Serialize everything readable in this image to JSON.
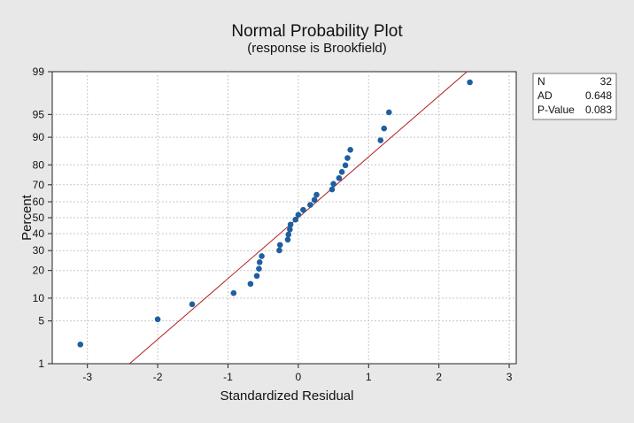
{
  "chart_data": {
    "type": "scatter",
    "title": "Normal Probability Plot",
    "subtitle": "(response is Brookfield)",
    "xlabel": "Standardized Residual",
    "ylabel": "Percent",
    "xlim": [
      -3.5,
      3.1
    ],
    "ylim_percent": [
      1,
      99
    ],
    "y_scale": "normal-probability",
    "grid": true,
    "x_ticks": [
      -3,
      -2,
      -1,
      0,
      1,
      2,
      3
    ],
    "y_ticks": [
      1,
      5,
      10,
      20,
      30,
      40,
      50,
      60,
      70,
      80,
      90,
      95,
      99
    ],
    "fit_line": {
      "x": [
        -2.4,
        2.4
      ],
      "percent": [
        1,
        99
      ]
    },
    "points": {
      "x": [
        -3.1,
        -2.0,
        -1.51,
        -0.92,
        -0.68,
        -0.59,
        -0.56,
        -0.55,
        -0.52,
        -0.27,
        -0.26,
        -0.15,
        -0.14,
        -0.12,
        -0.11,
        -0.04,
        0.0,
        0.07,
        0.17,
        0.23,
        0.26,
        0.48,
        0.5,
        0.58,
        0.62,
        0.67,
        0.7,
        0.74,
        1.17,
        1.22,
        1.29,
        2.44
      ],
      "percent": [
        2.17,
        5.28,
        8.39,
        11.49,
        14.6,
        17.7,
        20.81,
        23.91,
        27.02,
        30.12,
        33.23,
        36.34,
        39.44,
        42.55,
        45.65,
        48.76,
        51.86,
        54.97,
        58.07,
        61.18,
        64.29,
        67.39,
        70.5,
        73.6,
        76.71,
        79.81,
        82.92,
        86.02,
        89.13,
        92.24,
        95.34,
        98.45
      ]
    },
    "colors": {
      "points": "#1f5fa0",
      "line": "#b22020",
      "grid": "#c8c8c8",
      "background": "#e8e8e8",
      "plot_background": "#ffffff"
    },
    "legend_placement": "top-right",
    "stats": [
      {
        "label": "N",
        "value": "32"
      },
      {
        "label": "AD",
        "value": "0.648"
      },
      {
        "label": "P-Value",
        "value": "0.083"
      }
    ]
  }
}
